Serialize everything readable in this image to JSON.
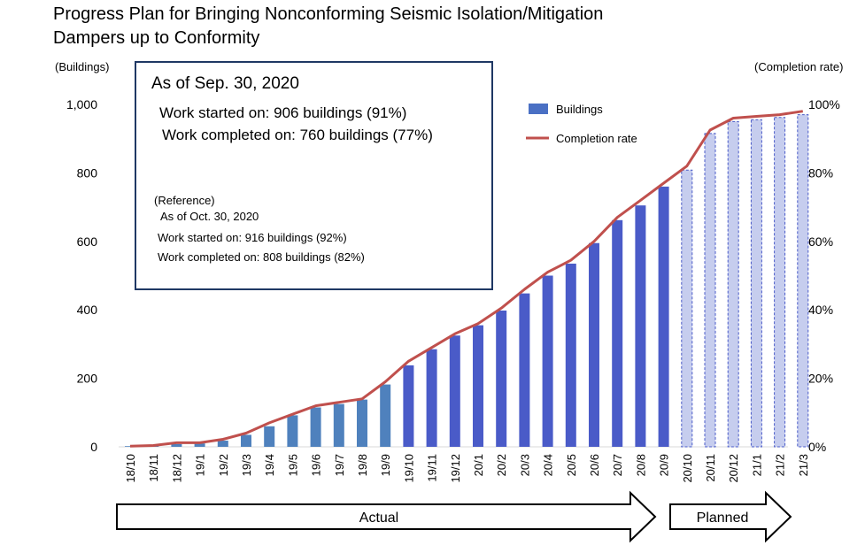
{
  "chart_data": {
    "type": "bar",
    "title_line1": "Progress Plan for Bringing Nonconforming Seismic Isolation/Mitigation",
    "title_line2": "Dampers up to Conformity",
    "ylabel_left": "(Buildings)",
    "ylabel_right": "(Completion rate)",
    "ylim_left": [
      0,
      1000
    ],
    "ylim_right": [
      0,
      100
    ],
    "left_ticks": [
      "0",
      "200",
      "400",
      "600",
      "800",
      "1,000"
    ],
    "right_ticks": [
      "0%",
      "20%",
      "40%",
      "60%",
      "80%",
      "100%"
    ],
    "legend": {
      "position": "top-right",
      "bars_label": "Buildings",
      "line_label": "Completion rate"
    },
    "colors": {
      "bar_early": "#4f81bd",
      "bar_actual": "#4a5bc8",
      "bar_planned_fill": "#c6cdee",
      "bar_planned_border": "#4a5bc8",
      "line": "#c0504d"
    },
    "categories": [
      "18/10",
      "18/11",
      "18/12",
      "19/1",
      "19/2",
      "19/3",
      "19/4",
      "19/5",
      "19/6",
      "19/7",
      "19/8",
      "19/9",
      "19/10",
      "19/11",
      "19/12",
      "20/1",
      "20/2",
      "20/3",
      "20/4",
      "20/5",
      "20/6",
      "20/7",
      "20/8",
      "20/9",
      "20/10",
      "20/11",
      "20/12",
      "21/1",
      "21/2",
      "21/3"
    ],
    "bar_style": [
      "early",
      "early",
      "early",
      "early",
      "early",
      "early",
      "early",
      "early",
      "early",
      "early",
      "early",
      "early",
      "actual",
      "actual",
      "actual",
      "actual",
      "actual",
      "actual",
      "actual",
      "actual",
      "actual",
      "actual",
      "actual",
      "actual",
      "planned",
      "planned",
      "planned",
      "planned",
      "planned",
      "planned"
    ],
    "series": [
      {
        "name": "Buildings",
        "kind": "bar",
        "values": [
          2,
          3,
          8,
          10,
          18,
          35,
          60,
          92,
          115,
          125,
          138,
          182,
          238,
          285,
          325,
          355,
          398,
          448,
          500,
          535,
          595,
          662,
          705,
          760,
          808,
          915,
          950,
          955,
          962,
          970
        ]
      },
      {
        "name": "Completion rate",
        "kind": "line",
        "values": [
          0.2,
          0.4,
          1.2,
          1.2,
          2.2,
          4,
          7,
          9.5,
          12,
          13,
          14,
          19,
          25,
          29,
          33,
          36,
          40.5,
          46,
          51,
          54.5,
          60,
          67,
          72,
          77,
          82,
          92.5,
          96,
          96.5,
          97,
          98
        ]
      }
    ],
    "phases": [
      {
        "label": "Actual",
        "from": "18/10",
        "to": "20/9"
      },
      {
        "label": "Planned",
        "from": "20/10",
        "to": "21/3"
      }
    ]
  },
  "info_box": {
    "heading": "As of Sep. 30, 2020",
    "line1": "Work started on: 906 buildings (91%)",
    "line2": "Work completed on: 760 buildings (77%)",
    "ref_label": "(Reference)",
    "ref_date": "As of Oct. 30, 2020",
    "ref_line1": "Work started on: 916 buildings (92%)",
    "ref_line2": "Work completed on: 808 buildings (82%)"
  }
}
